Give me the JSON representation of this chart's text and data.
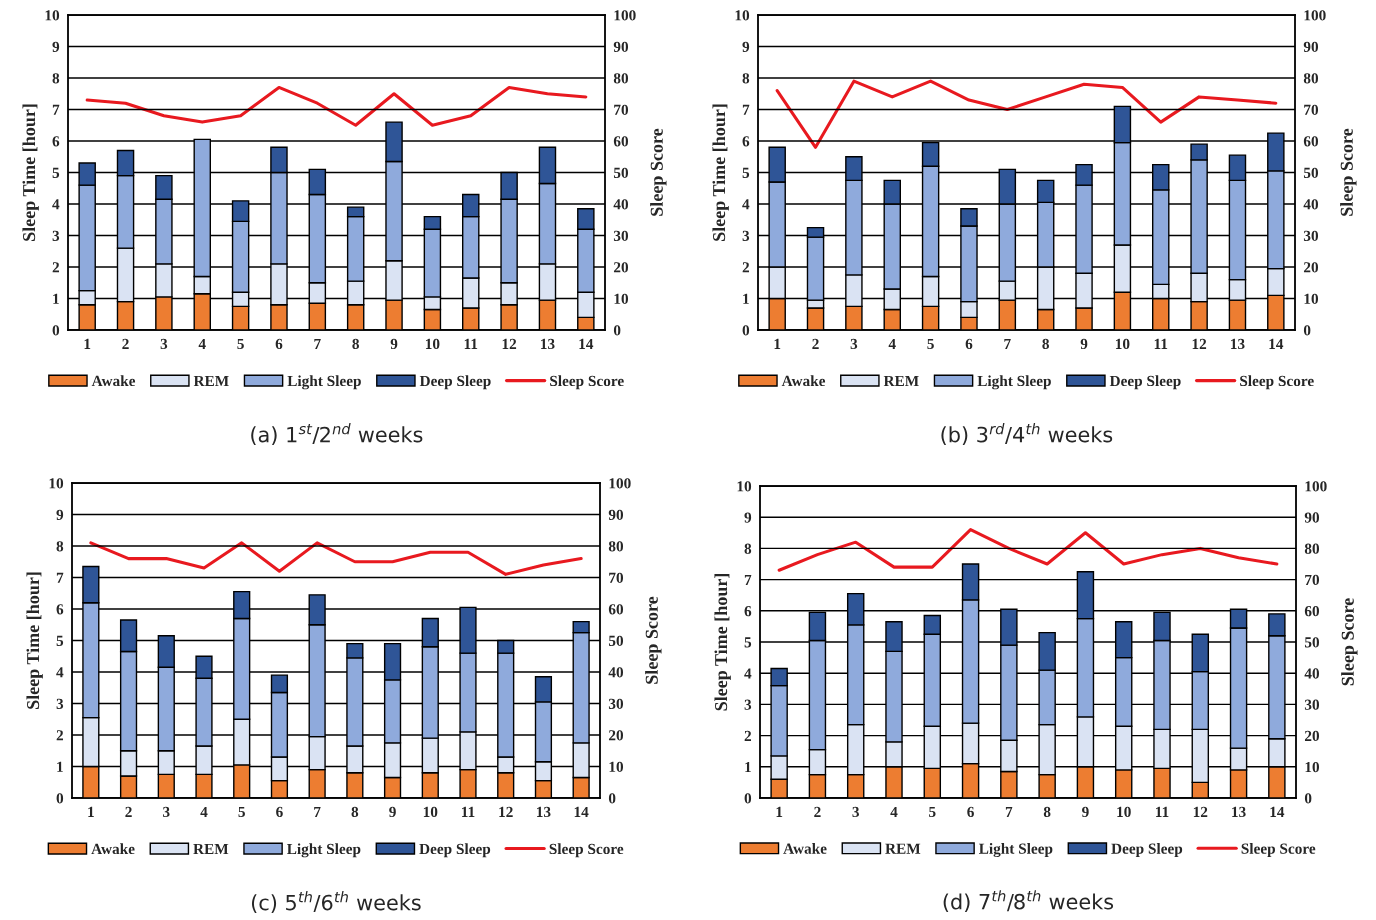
{
  "chart_data": [
    {
      "type": "bar",
      "title": "(a) 1$^{st}$/2$^{nd}$ weeks",
      "ylabel": "Sleep Time [hour]",
      "y2label": "Sleep Score",
      "stacked": true,
      "categories": [
        "1",
        "2",
        "3",
        "4",
        "5",
        "6",
        "7",
        "8",
        "9",
        "10",
        "11",
        "12",
        "13",
        "14"
      ],
      "ylim": [
        0,
        10
      ],
      "yticks": [
        0,
        1,
        2,
        3,
        4,
        5,
        6,
        7,
        8,
        9,
        10
      ],
      "y2lim": [
        0,
        100
      ],
      "y2ticks": [
        0,
        10,
        20,
        30,
        40,
        50,
        60,
        70,
        80,
        90,
        100
      ],
      "grid": "y",
      "legend": "bottom",
      "series": [
        {
          "name": "Awake",
          "color": "#ed7d31",
          "values": [
            0.8,
            0.9,
            1.05,
            1.15,
            0.75,
            0.8,
            0.85,
            0.8,
            0.95,
            0.65,
            0.7,
            0.8,
            0.95,
            0.4
          ]
        },
        {
          "name": "REM",
          "color": "#dae3f3",
          "values": [
            0.45,
            1.7,
            1.05,
            0.55,
            0.45,
            1.3,
            0.65,
            0.75,
            1.25,
            0.4,
            0.95,
            0.7,
            1.15,
            0.8
          ]
        },
        {
          "name": "Light Sleep",
          "color": "#8faadc",
          "values": [
            3.35,
            2.3,
            2.05,
            4.35,
            2.25,
            2.9,
            2.8,
            2.05,
            3.15,
            2.15,
            1.95,
            2.65,
            2.55,
            2.0
          ]
        },
        {
          "name": "Deep Sleep",
          "color": "#2f5597",
          "values": [
            0.7,
            0.8,
            0.75,
            null,
            0.65,
            0.8,
            0.8,
            0.3,
            1.25,
            0.4,
            0.7,
            0.85,
            1.15,
            0.65
          ]
        },
        {
          "name": "Sleep Score",
          "type": "line",
          "axis": "y2",
          "color": "#e8191f",
          "values": [
            73,
            72,
            68,
            66,
            68,
            77,
            72,
            65,
            75,
            65,
            68,
            77,
            75,
            74
          ]
        }
      ]
    },
    {
      "type": "bar",
      "title": "(b) 3$^{rd}$/4$^{th}$ weeks",
      "ylabel": "Sleep Time [hour]",
      "y2label": "Sleep Score",
      "stacked": true,
      "categories": [
        "1",
        "2",
        "3",
        "4",
        "5",
        "6",
        "7",
        "8",
        "9",
        "10",
        "11",
        "12",
        "13",
        "14"
      ],
      "ylim": [
        0,
        10
      ],
      "yticks": [
        0,
        1,
        2,
        3,
        4,
        5,
        6,
        7,
        8,
        9,
        10
      ],
      "y2lim": [
        0,
        100
      ],
      "y2ticks": [
        0,
        10,
        20,
        30,
        40,
        50,
        60,
        70,
        80,
        90,
        100
      ],
      "grid": "y",
      "legend": "bottom",
      "series": [
        {
          "name": "Awake",
          "color": "#ed7d31",
          "values": [
            1.0,
            0.7,
            0.75,
            0.65,
            0.75,
            0.4,
            0.95,
            0.65,
            0.7,
            1.2,
            1.0,
            0.9,
            0.95,
            1.1
          ]
        },
        {
          "name": "REM",
          "color": "#dae3f3",
          "values": [
            1.0,
            0.25,
            1.0,
            0.65,
            0.95,
            0.5,
            0.6,
            1.35,
            1.1,
            1.5,
            0.45,
            0.9,
            0.65,
            0.85
          ]
        },
        {
          "name": "Light Sleep",
          "color": "#8faadc",
          "values": [
            2.7,
            2.0,
            3.0,
            2.7,
            3.5,
            2.4,
            2.45,
            2.05,
            2.8,
            3.25,
            3.0,
            3.6,
            3.15,
            3.1
          ]
        },
        {
          "name": "Deep Sleep",
          "color": "#2f5597",
          "values": [
            1.1,
            0.3,
            0.75,
            0.75,
            0.75,
            0.55,
            1.1,
            0.7,
            0.65,
            1.15,
            0.8,
            0.5,
            0.8,
            1.2
          ]
        },
        {
          "name": "Sleep Score",
          "type": "line",
          "axis": "y2",
          "color": "#e8191f",
          "values": [
            76,
            58,
            79,
            74,
            79,
            73,
            70,
            74,
            78,
            77,
            66,
            74,
            73,
            72
          ]
        }
      ]
    },
    {
      "type": "bar",
      "title": "(c) 5$^{th}$/6$^{th}$ weeks",
      "ylabel": "Sleep Time [hour]",
      "y2label": "Sleep Score",
      "stacked": true,
      "categories": [
        "1",
        "2",
        "3",
        "4",
        "5",
        "6",
        "7",
        "8",
        "9",
        "10",
        "11",
        "12",
        "13",
        "14"
      ],
      "ylim": [
        0,
        10
      ],
      "yticks": [
        0,
        1,
        2,
        3,
        4,
        5,
        6,
        7,
        8,
        9,
        10
      ],
      "y2lim": [
        0,
        100
      ],
      "y2ticks": [
        0,
        10,
        20,
        30,
        40,
        50,
        60,
        70,
        80,
        90,
        100
      ],
      "grid": "y",
      "legend": "bottom",
      "series": [
        {
          "name": "Awake",
          "color": "#ed7d31",
          "values": [
            1.0,
            0.7,
            0.75,
            0.75,
            1.05,
            0.55,
            0.9,
            0.8,
            0.65,
            0.8,
            0.9,
            0.8,
            0.55,
            0.65
          ]
        },
        {
          "name": "REM",
          "color": "#dae3f3",
          "values": [
            1.55,
            0.8,
            0.75,
            0.9,
            1.45,
            0.75,
            1.05,
            0.85,
            1.1,
            1.1,
            1.2,
            0.5,
            0.6,
            1.1
          ]
        },
        {
          "name": "Light Sleep",
          "color": "#8faadc",
          "values": [
            3.65,
            3.15,
            2.65,
            2.15,
            3.2,
            2.05,
            3.55,
            2.8,
            2.0,
            2.9,
            2.5,
            3.3,
            1.9,
            3.5
          ]
        },
        {
          "name": "Deep Sleep",
          "color": "#2f5597",
          "values": [
            1.15,
            1.0,
            1.0,
            0.7,
            0.85,
            0.55,
            0.95,
            0.45,
            1.15,
            0.9,
            1.45,
            0.4,
            0.8,
            0.35
          ]
        },
        {
          "name": "Sleep Score",
          "type": "line",
          "axis": "y2",
          "color": "#e8191f",
          "values": [
            81,
            76,
            76,
            73,
            81,
            72,
            81,
            75,
            75,
            78,
            78,
            71,
            74,
            76
          ]
        }
      ]
    },
    {
      "type": "bar",
      "title": "(d) 7$^{th}$/8$^{th}$ weeks",
      "ylabel": "Sleep Time [hour]",
      "y2label": "Sleep Score",
      "stacked": true,
      "categories": [
        "1",
        "2",
        "3",
        "4",
        "5",
        "6",
        "7",
        "8",
        "9",
        "10",
        "11",
        "12",
        "13",
        "14"
      ],
      "ylim": [
        0,
        10
      ],
      "yticks": [
        0,
        1,
        2,
        3,
        4,
        5,
        6,
        7,
        8,
        9,
        10
      ],
      "y2lim": [
        0,
        100
      ],
      "y2ticks": [
        0,
        10,
        20,
        30,
        40,
        50,
        60,
        70,
        80,
        90,
        100
      ],
      "grid": "y",
      "legend": "bottom",
      "series": [
        {
          "name": "Awake",
          "color": "#ed7d31",
          "values": [
            0.6,
            0.75,
            0.75,
            1.0,
            0.95,
            1.1,
            0.85,
            0.75,
            1.0,
            0.9,
            0.95,
            0.5,
            0.9,
            1.0
          ]
        },
        {
          "name": "REM",
          "color": "#dae3f3",
          "values": [
            0.75,
            0.8,
            1.6,
            0.8,
            1.35,
            1.3,
            1.0,
            1.6,
            1.6,
            1.4,
            1.25,
            1.7,
            0.7,
            0.9
          ]
        },
        {
          "name": "Light Sleep",
          "color": "#8faadc",
          "values": [
            2.25,
            3.5,
            3.2,
            2.9,
            2.95,
            3.95,
            3.05,
            1.75,
            3.15,
            2.2,
            2.85,
            1.85,
            3.85,
            3.3
          ]
        },
        {
          "name": "Deep Sleep",
          "color": "#2f5597",
          "values": [
            0.55,
            0.9,
            1.0,
            0.95,
            0.6,
            1.15,
            1.15,
            1.2,
            1.5,
            1.15,
            0.9,
            1.2,
            0.6,
            0.7
          ]
        },
        {
          "name": "Sleep Score",
          "type": "line",
          "axis": "y2",
          "color": "#e8191f",
          "values": [
            73,
            78,
            82,
            74,
            74,
            86,
            80,
            75,
            85,
            75,
            78,
            80,
            77,
            75
          ]
        }
      ]
    }
  ]
}
